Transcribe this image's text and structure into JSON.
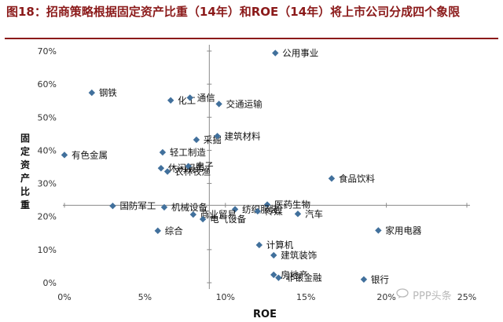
{
  "figure": {
    "title": "图18：招商策略根据固定资产比重（14年）和ROE（14年）将上市公司分成四个象限",
    "watermark": "PPP头条",
    "watermark_icon": "chat-bubble-icon"
  },
  "colors": {
    "title": "#8b1a1a",
    "marker": "#41709c",
    "axis": "#8a8a8a"
  },
  "chart_data": {
    "type": "scatter",
    "xlabel": "ROE",
    "ylabel": "固定资产比重",
    "xlim": [
      0,
      0.25
    ],
    "ylim": [
      0,
      0.7
    ],
    "xticks": [
      0,
      0.05,
      0.1,
      0.15,
      0.2,
      0.25
    ],
    "xtick_labels": [
      "0%",
      "5%",
      "10%",
      "15%",
      "20%",
      "25%"
    ],
    "yticks": [
      0,
      0.1,
      0.2,
      0.3,
      0.4,
      0.5,
      0.6,
      0.7
    ],
    "ytick_labels": [
      "0%",
      "10%",
      "20%",
      "30%",
      "40%",
      "50%",
      "60%",
      "70%"
    ],
    "crosshair": {
      "x": 0.09,
      "y": 0.234
    },
    "grid": false,
    "points": [
      {
        "name": "公用事业",
        "x": 0.131,
        "y": 0.694
      },
      {
        "name": "钢铁",
        "x": 0.017,
        "y": 0.574
      },
      {
        "name": "化工",
        "x": 0.066,
        "y": 0.551
      },
      {
        "name": "通信",
        "x": 0.078,
        "y": 0.559
      },
      {
        "name": "交通运输",
        "x": 0.096,
        "y": 0.54
      },
      {
        "name": "采掘",
        "x": 0.082,
        "y": 0.432
      },
      {
        "name": "建筑材料",
        "x": 0.095,
        "y": 0.443
      },
      {
        "name": "有色金属",
        "x": 0.0,
        "y": 0.386
      },
      {
        "name": "轻工制造",
        "x": 0.061,
        "y": 0.394
      },
      {
        "name": "休闲服务",
        "x": 0.06,
        "y": 0.346
      },
      {
        "name": "电子",
        "x": 0.077,
        "y": 0.352
      },
      {
        "name": "农林牧渔",
        "x": 0.064,
        "y": 0.336
      },
      {
        "name": "食品饮料",
        "x": 0.166,
        "y": 0.315
      },
      {
        "name": "医药生物",
        "x": 0.126,
        "y": 0.236
      },
      {
        "name": "国防军工",
        "x": 0.03,
        "y": 0.232
      },
      {
        "name": "机械设备",
        "x": 0.062,
        "y": 0.228
      },
      {
        "name": "纺织服装",
        "x": 0.106,
        "y": 0.222
      },
      {
        "name": "传媒",
        "x": 0.12,
        "y": 0.216
      },
      {
        "name": "汽车",
        "x": 0.145,
        "y": 0.208
      },
      {
        "name": "商业贸易",
        "x": 0.08,
        "y": 0.206
      },
      {
        "name": "电气设备",
        "x": 0.086,
        "y": 0.192
      },
      {
        "name": "综合",
        "x": 0.058,
        "y": 0.157
      },
      {
        "name": "家用电器",
        "x": 0.195,
        "y": 0.158
      },
      {
        "name": "计算机",
        "x": 0.121,
        "y": 0.114
      },
      {
        "name": "建筑装饰",
        "x": 0.13,
        "y": 0.083
      },
      {
        "name": "房地产",
        "x": 0.13,
        "y": 0.024
      },
      {
        "name": "非银金融",
        "x": 0.133,
        "y": 0.015
      },
      {
        "name": "银行",
        "x": 0.186,
        "y": 0.01
      }
    ]
  }
}
